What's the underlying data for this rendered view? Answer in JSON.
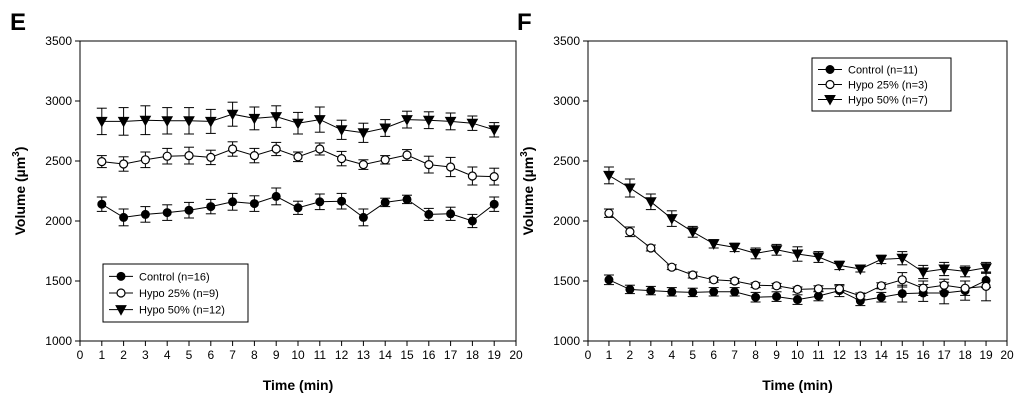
{
  "chart_data": [
    {
      "type": "line",
      "panel_label": "E",
      "title": "",
      "xlabel": "Time (min)",
      "ylabel_main": "Volume (µm",
      "ylabel_sup": "3",
      "ylabel_close": ")",
      "xlim": [
        0,
        20
      ],
      "ylim": [
        1000,
        3500
      ],
      "xticks": [
        0,
        1,
        2,
        3,
        4,
        5,
        6,
        7,
        8,
        9,
        10,
        11,
        12,
        13,
        14,
        15,
        16,
        17,
        18,
        19,
        20
      ],
      "yticks": [
        1000,
        1500,
        2000,
        2500,
        3000,
        3500
      ],
      "grid": false,
      "legend_position": "bottom-left",
      "x": [
        1,
        2,
        3,
        4,
        5,
        6,
        7,
        8,
        9,
        10,
        11,
        12,
        13,
        14,
        15,
        16,
        17,
        18,
        19
      ],
      "series": [
        {
          "name": "Control (n=16)",
          "marker": "filled-circle",
          "values": [
            2140,
            2030,
            2055,
            2070,
            2090,
            2120,
            2160,
            2145,
            2205,
            2110,
            2160,
            2165,
            2030,
            2155,
            2180,
            2055,
            2060,
            2000,
            2140
          ],
          "errors": [
            60,
            70,
            65,
            65,
            65,
            60,
            70,
            65,
            70,
            55,
            65,
            65,
            70,
            35,
            35,
            50,
            55,
            55,
            60
          ]
        },
        {
          "name": "Hypo 25% (n=9)",
          "marker": "open-circle",
          "values": [
            2495,
            2475,
            2510,
            2540,
            2545,
            2530,
            2600,
            2545,
            2600,
            2535,
            2600,
            2520,
            2470,
            2510,
            2550,
            2470,
            2450,
            2375,
            2370
          ],
          "errors": [
            50,
            60,
            65,
            65,
            70,
            60,
            60,
            60,
            55,
            40,
            50,
            60,
            40,
            35,
            45,
            70,
            80,
            75,
            70
          ]
        },
        {
          "name": "Hypo 50% (n=12)",
          "marker": "filled-triangle-down",
          "values": [
            2830,
            2830,
            2840,
            2835,
            2835,
            2830,
            2890,
            2855,
            2870,
            2815,
            2845,
            2760,
            2735,
            2775,
            2845,
            2840,
            2830,
            2815,
            2760
          ],
          "errors": [
            110,
            115,
            120,
            110,
            110,
            100,
            100,
            95,
            90,
            90,
            105,
            80,
            80,
            70,
            70,
            70,
            70,
            60,
            60
          ]
        }
      ]
    },
    {
      "type": "line",
      "panel_label": "F",
      "title": "",
      "xlabel": "Time (min)",
      "ylabel_main": "Volume (µm",
      "ylabel_sup": "3",
      "ylabel_close": ")",
      "xlim": [
        0,
        20
      ],
      "ylim": [
        1000,
        3500
      ],
      "xticks": [
        0,
        1,
        2,
        3,
        4,
        5,
        6,
        7,
        8,
        9,
        10,
        11,
        12,
        13,
        14,
        15,
        16,
        17,
        18,
        19,
        20
      ],
      "yticks": [
        1000,
        1500,
        2000,
        2500,
        3000,
        3500
      ],
      "grid": false,
      "legend_position": "top-right",
      "x": [
        1,
        2,
        3,
        4,
        5,
        6,
        7,
        8,
        9,
        10,
        11,
        12,
        13,
        14,
        15,
        16,
        17,
        18,
        19
      ],
      "series": [
        {
          "name": "Control (n=11)",
          "marker": "filled-circle",
          "values": [
            1510,
            1430,
            1420,
            1410,
            1405,
            1410,
            1410,
            1365,
            1370,
            1345,
            1375,
            1420,
            1335,
            1365,
            1395,
            1400,
            1400,
            1420,
            1505
          ],
          "errors": [
            40,
            35,
            35,
            35,
            35,
            35,
            35,
            40,
            40,
            40,
            40,
            50,
            40,
            40,
            70,
            70,
            90,
            80,
            60
          ]
        },
        {
          "name": "Hypo 25% (n=3)",
          "marker": "open-circle",
          "values": [
            2065,
            1910,
            1775,
            1615,
            1550,
            1510,
            1500,
            1465,
            1460,
            1430,
            1435,
            1435,
            1375,
            1460,
            1510,
            1440,
            1465,
            1440,
            1455
          ],
          "errors": [
            35,
            40,
            25,
            20,
            25,
            20,
            20,
            20,
            20,
            20,
            25,
            25,
            25,
            25,
            60,
            60,
            50,
            60,
            120
          ]
        },
        {
          "name": "Hypo 50% (n=7)",
          "marker": "filled-triangle-down",
          "values": [
            2380,
            2275,
            2160,
            2020,
            1910,
            1810,
            1780,
            1730,
            1760,
            1725,
            1700,
            1630,
            1600,
            1680,
            1690,
            1575,
            1600,
            1580,
            1610
          ],
          "errors": [
            70,
            75,
            65,
            65,
            45,
            35,
            35,
            45,
            45,
            60,
            45,
            35,
            25,
            35,
            55,
            55,
            55,
            45,
            45
          ]
        }
      ]
    }
  ]
}
